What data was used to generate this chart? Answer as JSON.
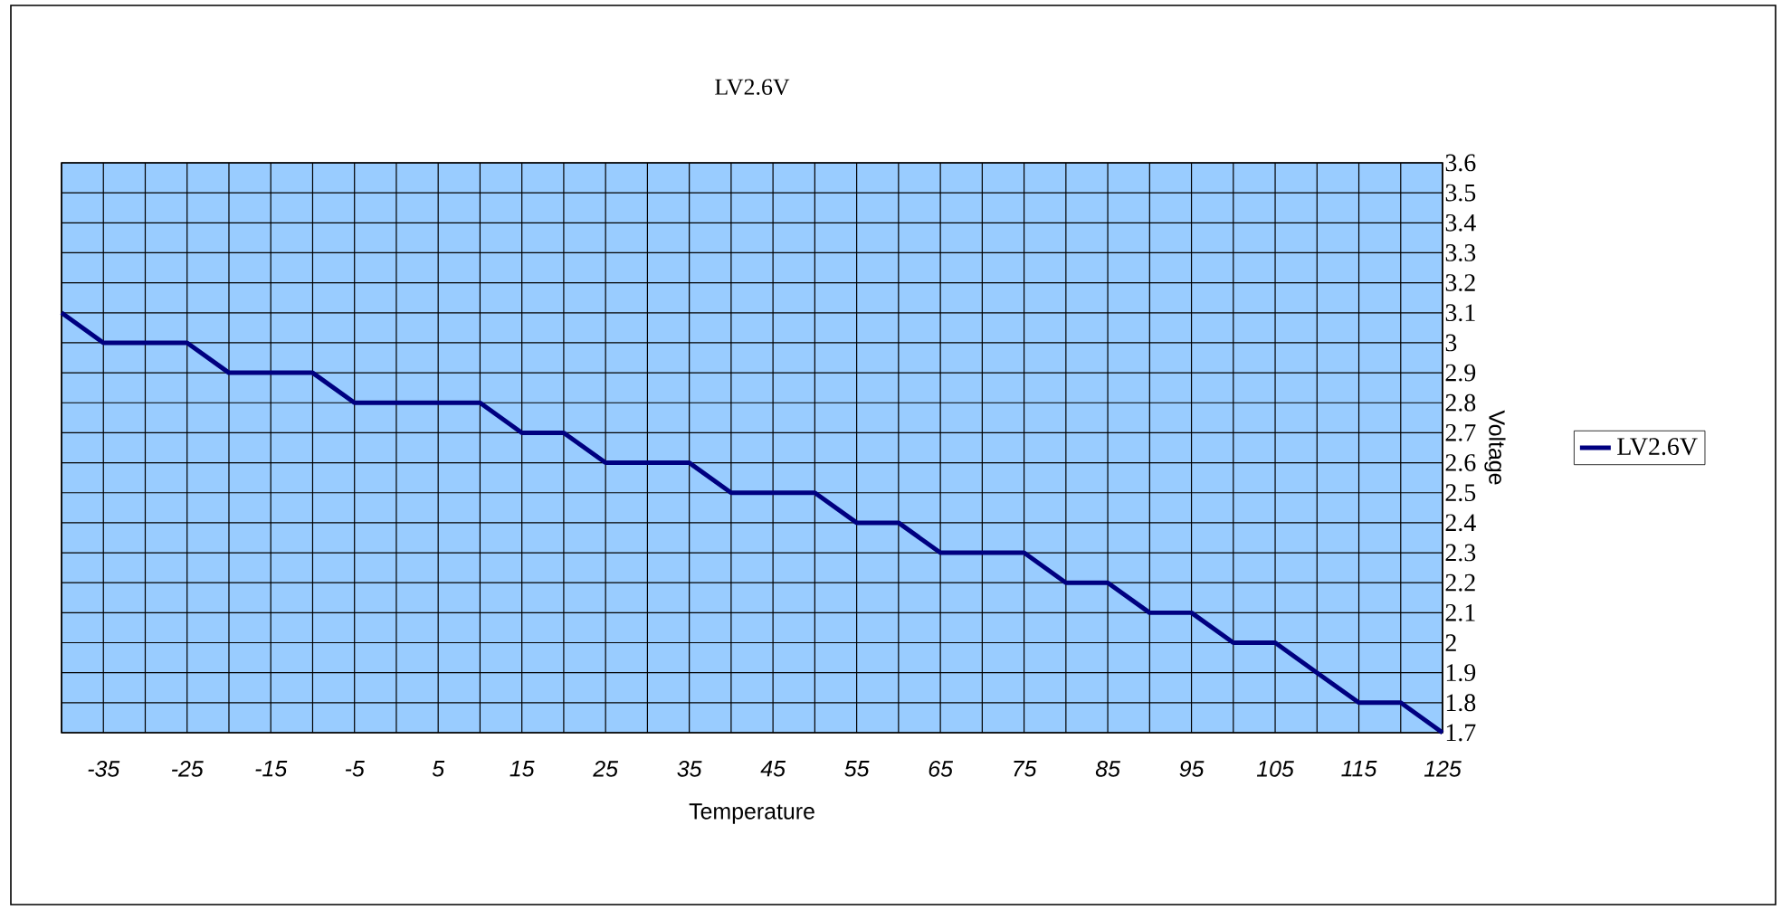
{
  "chart_data": {
    "type": "line",
    "title": "LV2.6V",
    "xlabel": "Temperature",
    "ylabel": "Voltage",
    "x": [
      -40,
      -35,
      -30,
      -25,
      -20,
      -15,
      -10,
      -5,
      0,
      5,
      10,
      15,
      20,
      25,
      30,
      35,
      40,
      45,
      50,
      55,
      60,
      65,
      70,
      75,
      80,
      85,
      90,
      95,
      100,
      105,
      110,
      115,
      120,
      125
    ],
    "series": [
      {
        "name": "LV2.6V",
        "color": "#000080",
        "values": [
          3.1,
          3.0,
          3.0,
          3.0,
          2.9,
          2.9,
          2.9,
          2.8,
          2.8,
          2.8,
          2.8,
          2.7,
          2.7,
          2.6,
          2.6,
          2.6,
          2.5,
          2.5,
          2.5,
          2.4,
          2.4,
          2.3,
          2.3,
          2.3,
          2.2,
          2.2,
          2.1,
          2.1,
          2.0,
          2.0,
          1.9,
          1.8,
          1.8,
          1.7
        ]
      }
    ],
    "xlim": [
      -40,
      125
    ],
    "xticks": [
      {
        "value": -40,
        "label": null
      },
      -35,
      {
        "value": -30,
        "label": null
      },
      -25,
      {
        "value": -20,
        "label": null
      },
      -15,
      {
        "value": -10,
        "label": null
      },
      -5,
      {
        "value": 0,
        "label": null
      },
      5,
      {
        "value": 10,
        "label": null
      },
      15,
      {
        "value": 20,
        "label": null
      },
      25,
      {
        "value": 30,
        "label": null
      },
      35,
      {
        "value": 40,
        "label": null
      },
      45,
      {
        "value": 50,
        "label": null
      },
      55,
      {
        "value": 60,
        "label": null
      },
      65,
      {
        "value": 70,
        "label": null
      },
      75,
      {
        "value": 80,
        "label": null
      },
      85,
      {
        "value": 90,
        "label": null
      },
      95,
      {
        "value": 100,
        "label": null
      },
      105,
      {
        "value": 110,
        "label": null
      },
      115,
      {
        "value": 120,
        "label": null
      },
      125
    ],
    "ylim": [
      1.7,
      3.6
    ],
    "yticks": [
      1.7,
      1.8,
      1.9,
      2,
      2.1,
      2.2,
      2.3,
      2.4,
      2.5,
      2.6,
      2.7,
      2.8,
      2.9,
      3,
      3.1,
      3.2,
      3.3,
      3.4,
      3.5,
      3.6
    ],
    "grid": true,
    "legend": "right",
    "marker": "none",
    "line_style": "solid"
  }
}
